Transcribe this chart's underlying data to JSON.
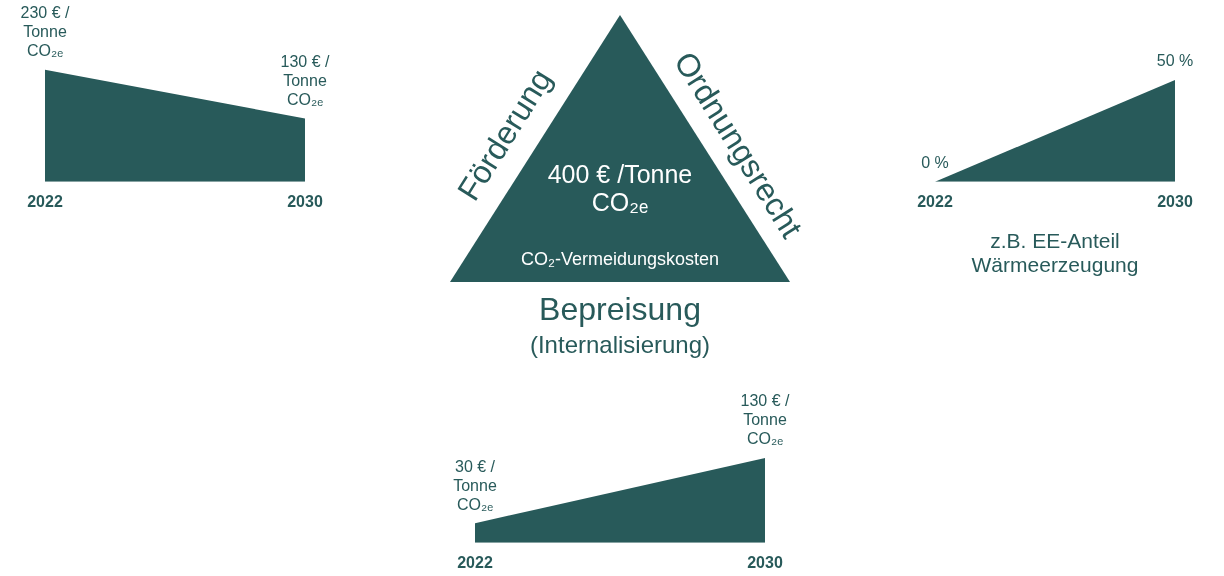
{
  "chart_data": [
    {
      "type": "area",
      "categories": [
        "2022",
        "2030"
      ],
      "values": [
        230,
        130
      ],
      "color": "#285a5a",
      "value_labels": [
        "230 € / Tonne CO₂ₑ",
        "130 € / Tonne CO₂ₑ"
      ],
      "tick_labels": "x"
    },
    {
      "type": "other",
      "annotations": [
        "Förderung",
        "Ordnungsrecht",
        "400 € /Tonne CO₂ₑ",
        "CO₂-Vermeidungskosten",
        "Bepreisung",
        "(Internalisierung)"
      ]
    },
    {
      "type": "area",
      "categories": [
        "2022",
        "2030"
      ],
      "values": [
        0,
        50
      ],
      "color": "#285a5a",
      "value_labels": [
        "0 %",
        "50 %"
      ],
      "tick_labels": "x",
      "xlabel": "z.B. EE-Anteil Wärmeerzeugung"
    },
    {
      "type": "area",
      "categories": [
        "2022",
        "2030"
      ],
      "values": [
        30,
        130
      ],
      "color": "#285a5a",
      "value_labels": [
        "30 € / Tonne CO₂ₑ",
        "130 € / Tonne CO₂ₑ"
      ],
      "tick_labels": "x"
    }
  ]
}
